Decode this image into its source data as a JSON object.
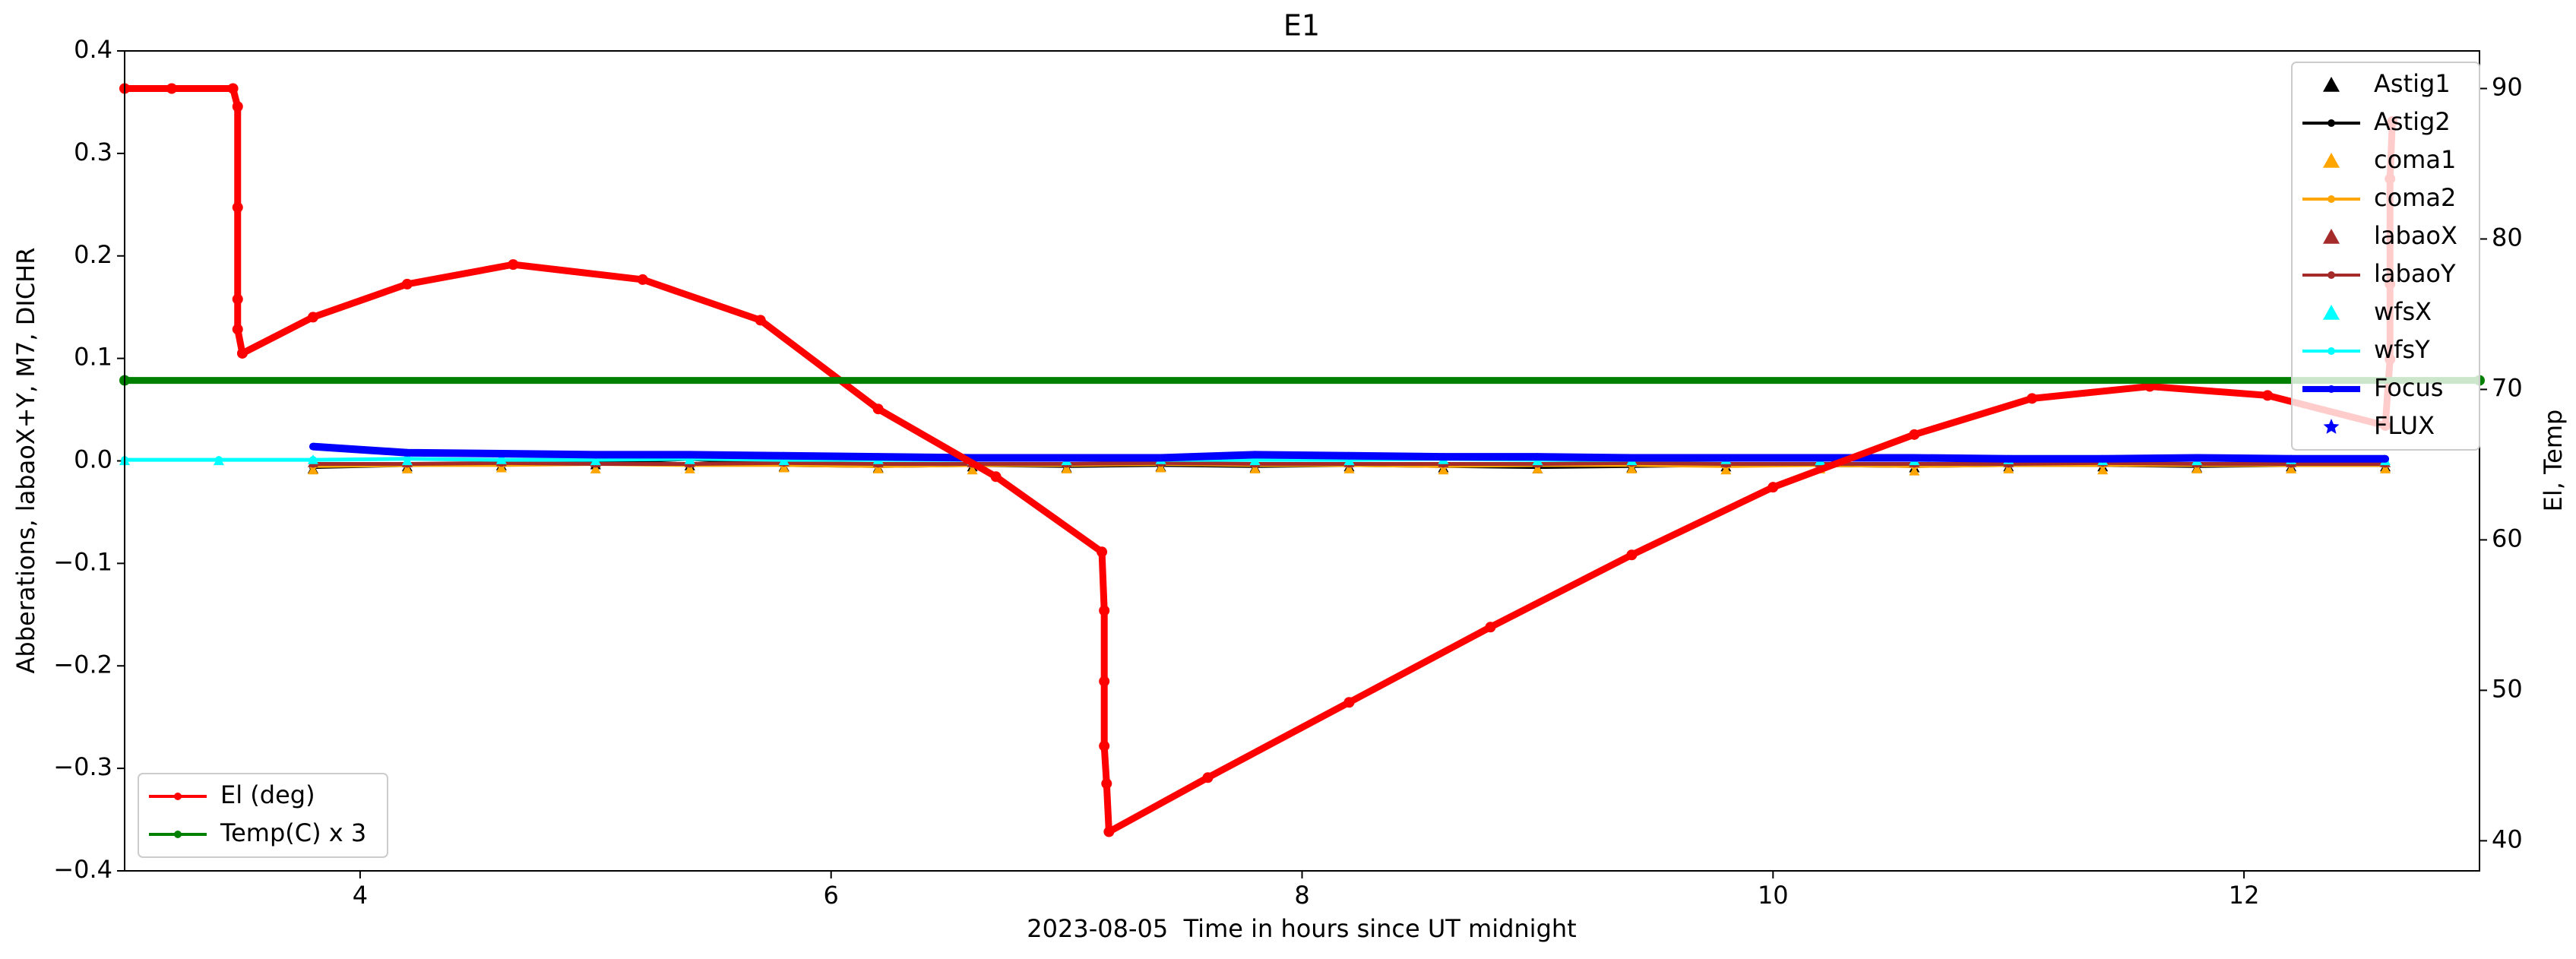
{
  "chart_data": {
    "type": "line",
    "title": "E1",
    "xlabel": "2023-08-05  Time in hours since UT midnight",
    "ylabel": "Abberations, labaoX+Y, M7, DICHR",
    "y2label": "El, Temp",
    "xlim": [
      3.0,
      13.0
    ],
    "xticks": [
      4,
      6,
      8,
      10,
      12
    ],
    "ylim": [
      -0.4,
      0.4
    ],
    "yticks": [
      {
        "value": -0.4,
        "label": "−0.4"
      },
      {
        "value": -0.3,
        "label": "−0.3"
      },
      {
        "value": -0.2,
        "label": "−0.2"
      },
      {
        "value": -0.1,
        "label": "−0.1"
      },
      {
        "value": 0,
        "label": "0.0"
      },
      0.1,
      0.2,
      0.3,
      0.4
    ],
    "y2lim": [
      38.0,
      92.5
    ],
    "y2ticks": [
      40,
      50,
      60,
      70,
      80,
      90
    ],
    "series": [
      {
        "name": "Astig1",
        "type": "scatter",
        "marker": "^",
        "color": "#000000",
        "legend": "upper right",
        "x": [
          3.8,
          4.2,
          4.6,
          5.0,
          5.4,
          5.8,
          6.2,
          6.6,
          7.0,
          7.4,
          7.8,
          8.2,
          8.6,
          9.0,
          9.4,
          9.8,
          10.2,
          10.6,
          11.0,
          11.4,
          11.8,
          12.2,
          12.6
        ],
        "values": [
          -0.008,
          -0.006,
          -0.005,
          -0.004,
          -0.005,
          -0.006,
          -0.007,
          -0.006,
          -0.007,
          -0.006,
          -0.007,
          -0.006,
          -0.007,
          -0.008,
          -0.007,
          -0.006,
          -0.006,
          -0.007,
          -0.006,
          -0.006,
          -0.007,
          -0.006,
          -0.006
        ]
      },
      {
        "name": "Astig2",
        "type": "line",
        "marker": "o",
        "color": "#000000",
        "legend": "upper right",
        "x": [
          3.8,
          4.2,
          4.6,
          5.0,
          5.4,
          5.8,
          6.2,
          6.6,
          7.0,
          7.4,
          7.8,
          8.2,
          8.6,
          9.0,
          9.4,
          9.8,
          10.2,
          10.6,
          11.0,
          11.4,
          11.8,
          12.2,
          12.6
        ],
        "values": [
          -0.006,
          -0.004,
          -0.003,
          -0.002,
          0.002,
          -0.004,
          -0.005,
          -0.004,
          -0.005,
          -0.004,
          -0.005,
          -0.004,
          -0.005,
          -0.006,
          -0.005,
          -0.004,
          -0.004,
          -0.005,
          -0.004,
          -0.004,
          -0.005,
          -0.004,
          -0.004
        ]
      },
      {
        "name": "coma1",
        "type": "scatter",
        "marker": "^",
        "color": "#ffa500",
        "legend": "upper right",
        "x": [
          3.8,
          4.2,
          4.6,
          5.0,
          5.4,
          5.8,
          6.2,
          6.6,
          7.0,
          7.4,
          7.8,
          8.2,
          8.6,
          9.0,
          9.4,
          9.8,
          10.2,
          10.6,
          11.0,
          11.4,
          11.8,
          12.2,
          12.6
        ],
        "values": [
          -0.009,
          -0.008,
          -0.007,
          -0.008,
          -0.008,
          -0.007,
          -0.008,
          -0.009,
          -0.008,
          -0.007,
          -0.008,
          -0.008,
          -0.009,
          -0.008,
          -0.008,
          -0.009,
          -0.008,
          -0.01,
          -0.008,
          -0.009,
          -0.008,
          -0.008,
          -0.008
        ]
      },
      {
        "name": "coma2",
        "type": "line",
        "marker": "o",
        "color": "#ffa500",
        "legend": "upper right",
        "x": [
          3.8,
          4.2,
          4.6,
          5.0,
          5.4,
          5.8,
          6.2,
          6.6,
          7.0,
          7.4,
          7.8,
          8.2,
          8.6,
          9.0,
          9.4,
          9.8,
          10.2,
          10.6,
          11.0,
          11.4,
          11.8,
          12.2,
          12.6
        ],
        "values": [
          -0.005,
          -0.004,
          -0.004,
          -0.003,
          -0.004,
          -0.004,
          -0.005,
          -0.004,
          -0.004,
          -0.003,
          -0.004,
          -0.004,
          -0.005,
          -0.004,
          -0.004,
          -0.005,
          -0.004,
          -0.005,
          -0.004,
          -0.004,
          -0.004,
          -0.004,
          -0.004
        ]
      },
      {
        "name": "labaoX",
        "type": "scatter",
        "marker": "^",
        "color": "#a52a2a",
        "legend": "upper right",
        "x": [
          3.8,
          4.2,
          4.6,
          5.0,
          5.4,
          5.8,
          6.2,
          6.6,
          7.0,
          7.4,
          7.8,
          8.2,
          8.6,
          9.0,
          9.4,
          9.8,
          10.2,
          10.6,
          11.0,
          11.4,
          11.8,
          12.2,
          12.6
        ],
        "values": [
          -0.002,
          -0.002,
          -0.001,
          -0.002,
          -0.002,
          -0.001,
          -0.002,
          -0.002,
          -0.002,
          -0.001,
          -0.002,
          -0.002,
          -0.002,
          -0.002,
          -0.001,
          -0.002,
          -0.002,
          -0.002,
          -0.002,
          -0.001,
          -0.002,
          -0.002,
          -0.002
        ]
      },
      {
        "name": "labaoY",
        "type": "line",
        "marker": "o",
        "color": "#a52a2a",
        "legend": "upper right",
        "x": [
          3.8,
          4.2,
          4.6,
          5.0,
          5.4,
          5.8,
          6.2,
          6.6,
          7.0,
          7.4,
          7.8,
          8.2,
          8.6,
          9.0,
          9.4,
          9.8,
          10.2,
          10.6,
          11.0,
          11.4,
          11.8,
          12.2,
          12.6
        ],
        "values": [
          -0.003,
          -0.003,
          -0.002,
          -0.003,
          -0.003,
          -0.002,
          -0.003,
          -0.003,
          -0.003,
          -0.002,
          -0.003,
          -0.003,
          -0.003,
          -0.003,
          -0.002,
          -0.003,
          -0.003,
          -0.003,
          -0.003,
          -0.002,
          -0.003,
          -0.003,
          -0.003
        ]
      },
      {
        "name": "wfsX",
        "type": "scatter",
        "marker": "^",
        "color": "#00ffff",
        "legend": "upper right",
        "x": [
          3.0,
          3.4,
          3.8,
          4.2,
          4.6,
          5.0,
          5.4,
          5.8,
          6.2,
          6.6,
          7.0,
          7.4,
          7.8,
          8.2,
          8.6,
          9.0,
          9.4,
          9.8,
          10.2,
          10.6,
          11.0,
          11.4,
          11.8,
          12.2,
          12.6
        ],
        "values": [
          0.0,
          0.0,
          0.001,
          0.0,
          0.001,
          0.0,
          0.001,
          0.0,
          0.001,
          0.0,
          0.0,
          0.001,
          0.0,
          0.0,
          0.001,
          0.0,
          0.0,
          0.001,
          0.0,
          0.0,
          0.001,
          0.0,
          0.0,
          0.001,
          0.0
        ]
      },
      {
        "name": "wfsY",
        "type": "line",
        "marker": "o",
        "color": "#00ffff",
        "legend": "upper right",
        "x": [
          3.0,
          3.4,
          3.8,
          4.2,
          4.6,
          5.0,
          5.4,
          5.8,
          6.2,
          6.6,
          7.0,
          7.4,
          7.8,
          8.2,
          8.6,
          9.0,
          9.4,
          9.8,
          10.2,
          10.6,
          11.0,
          11.4,
          11.8,
          12.2,
          12.6
        ],
        "values": [
          0.001,
          0.001,
          0.001,
          0.002,
          0.001,
          0.001,
          0.002,
          0.001,
          0.001,
          0.001,
          0.002,
          0.001,
          0.001,
          0.001,
          0.002,
          0.001,
          0.001,
          0.001,
          0.002,
          0.001,
          0.001,
          0.001,
          0.002,
          0.001,
          0.001
        ]
      },
      {
        "name": "Focus",
        "type": "line",
        "marker": "o",
        "color": "#0000ff",
        "legend": "upper right",
        "x": [
          3.8,
          4.2,
          4.6,
          5.0,
          5.4,
          5.8,
          6.2,
          6.6,
          7.0,
          7.4,
          7.8,
          8.2,
          8.6,
          9.0,
          9.4,
          9.8,
          10.2,
          10.6,
          11.0,
          11.4,
          11.8,
          12.2,
          12.6
        ],
        "values": [
          0.014,
          0.008,
          0.007,
          0.006,
          0.006,
          0.005,
          0.004,
          0.003,
          0.003,
          0.003,
          0.006,
          0.005,
          0.004,
          0.004,
          0.003,
          0.003,
          0.003,
          0.003,
          0.002,
          0.002,
          0.003,
          0.002,
          0.002
        ]
      },
      {
        "name": "FLUX",
        "type": "scatter",
        "marker": "*",
        "color": "#0000ff",
        "legend": "upper right",
        "x": [],
        "values": []
      },
      {
        "name": "El (deg)",
        "type": "line",
        "marker": "o",
        "color": "#ff0000",
        "axis": "y2",
        "legend": "lower left",
        "x": [
          3.0,
          3.2,
          3.46,
          3.48,
          3.48,
          3.48,
          3.48,
          3.5,
          3.8,
          4.2,
          4.65,
          5.2,
          5.7,
          6.2,
          6.7,
          7.15,
          7.16,
          7.16,
          7.16,
          7.17,
          7.18,
          7.6,
          8.2,
          8.8,
          9.4,
          10.0,
          10.6,
          11.1,
          11.6,
          12.1,
          12.6,
          12.62,
          12.62,
          12.62,
          12.63
        ],
        "values": [
          90,
          90,
          90,
          88.8,
          82.1,
          76,
          74,
          72.4,
          74.8,
          77,
          78.3,
          77.3,
          74.6,
          68.7,
          64.2,
          59.2,
          55.3,
          50.6,
          46.3,
          43.8,
          40.6,
          44.2,
          49.2,
          54.2,
          59,
          63.5,
          67,
          69.4,
          70.2,
          69.6,
          67.6,
          72,
          77,
          84,
          87.8
        ]
      },
      {
        "name": "Temp(C) x 3",
        "type": "line",
        "marker": "o",
        "color": "#008000",
        "axis": "y2",
        "legend": "lower left",
        "x": [
          3.0,
          13.0
        ],
        "values": [
          70.6,
          70.6
        ]
      }
    ]
  }
}
